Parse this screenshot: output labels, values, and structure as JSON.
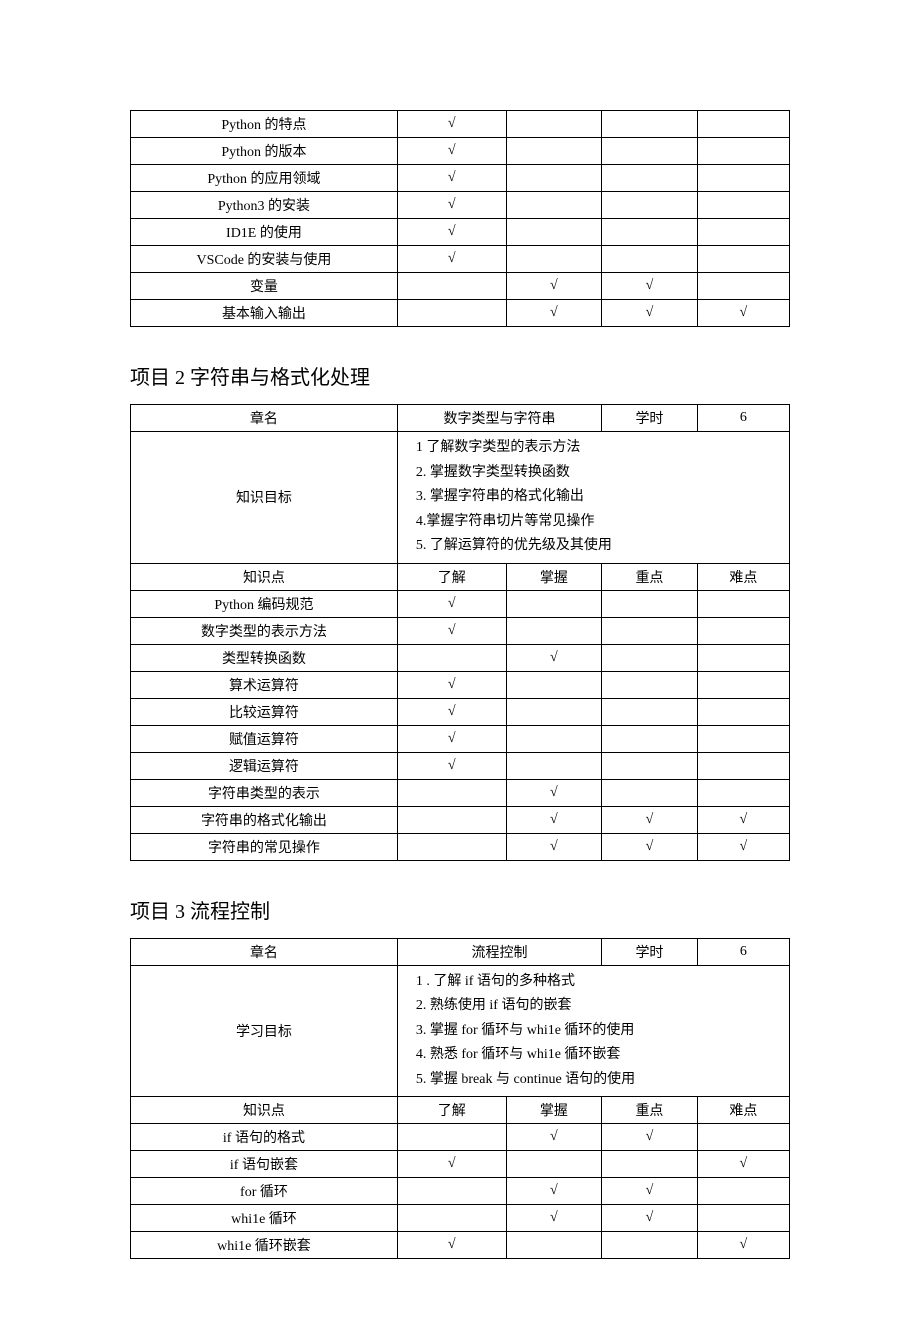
{
  "check": "√",
  "table1": {
    "col_widths": [
      "40.5%",
      "16.5%",
      "14.5%",
      "14.5%",
      "14%"
    ],
    "rows": [
      {
        "label": "Python 的特点",
        "marks": [
          "√",
          "",
          "",
          ""
        ]
      },
      {
        "label": "Python 的版本",
        "marks": [
          "√",
          "",
          "",
          ""
        ]
      },
      {
        "label": "Python 的应用领域",
        "marks": [
          "√",
          "",
          "",
          ""
        ]
      },
      {
        "label": "Python3 的安装",
        "marks": [
          "√",
          "",
          "",
          ""
        ]
      },
      {
        "label": "ID1E 的使用",
        "marks": [
          "√",
          "",
          "",
          ""
        ]
      },
      {
        "label": "VSCode 的安装与使用",
        "marks": [
          "√",
          "",
          "",
          ""
        ]
      },
      {
        "label": "变量",
        "marks": [
          "",
          "√",
          "√",
          ""
        ]
      },
      {
        "label": "基本输入输出",
        "marks": [
          "",
          "√",
          "√",
          "√"
        ]
      }
    ]
  },
  "section2": {
    "title": "项目 2 字符串与格式化处理",
    "chapter_label": "章名",
    "chapter_value": "数字类型与字符串",
    "hours_label": "学时",
    "hours_value": "6",
    "goal_label": "知识目标",
    "goals": [
      "1 了解数字类型的表示方法",
      "2. 掌握数字类型转换函数",
      "3. 掌握字符串的格式化输出",
      "4.掌握字符串切片等常见操作",
      "5. 了解运算符的优先级及其使用"
    ],
    "headers": [
      "知识点",
      "了解",
      "掌握",
      "重点",
      "难点"
    ],
    "col_widths": [
      "40.5%",
      "16.5%",
      "14.5%",
      "14.5%",
      "14%"
    ],
    "rows": [
      {
        "label": "Python 编码规范",
        "marks": [
          "√",
          "",
          "",
          ""
        ]
      },
      {
        "label": "数字类型的表示方法",
        "marks": [
          "√",
          "",
          "",
          ""
        ]
      },
      {
        "label": "类型转换函数",
        "marks": [
          "",
          "√",
          "",
          ""
        ]
      },
      {
        "label": "算术运算符",
        "marks": [
          "√",
          "",
          "",
          ""
        ]
      },
      {
        "label": "比较运算符",
        "marks": [
          "√",
          "",
          "",
          ""
        ]
      },
      {
        "label": "赋值运算符",
        "marks": [
          "√",
          "",
          "",
          ""
        ]
      },
      {
        "label": "逻辑运算符",
        "marks": [
          "√",
          "",
          "",
          ""
        ]
      },
      {
        "label": "字符串类型的表示",
        "marks": [
          "",
          "√",
          "",
          ""
        ]
      },
      {
        "label": "字符串的格式化输出",
        "marks": [
          "",
          "√",
          "√",
          "√"
        ]
      },
      {
        "label": "字符串的常见操作",
        "marks": [
          "",
          "√",
          "√",
          "√"
        ]
      }
    ]
  },
  "section3": {
    "title": "项目 3 流程控制",
    "chapter_label": "章名",
    "chapter_value": "流程控制",
    "hours_label": "学时",
    "hours_value": "6",
    "goal_label": "学习目标",
    "goals": [
      "1 . 了解 if 语句的多种格式",
      "2. 熟练使用 if 语句的嵌套",
      "3. 掌握 for 循环与 whi1e 循环的使用",
      "4. 熟悉 for 循环与 whi1e 循环嵌套",
      "5. 掌握 break 与 continue 语句的使用"
    ],
    "headers": [
      "知识点",
      "了解",
      "掌握",
      "重点",
      "难点"
    ],
    "col_widths": [
      "40.5%",
      "16.5%",
      "14.5%",
      "14.5%",
      "14%"
    ],
    "rows": [
      {
        "label": "if 语句的格式",
        "marks": [
          "",
          "√",
          "√",
          ""
        ]
      },
      {
        "label": "if 语句嵌套",
        "marks": [
          "√",
          "",
          "",
          "√"
        ]
      },
      {
        "label": "for 循环",
        "marks": [
          "",
          "√",
          "√",
          ""
        ]
      },
      {
        "label": "whi1e 循环",
        "marks": [
          "",
          "√",
          "√",
          ""
        ]
      },
      {
        "label": "whi1e 循环嵌套",
        "marks": [
          "√",
          "",
          "",
          "√"
        ]
      }
    ]
  }
}
